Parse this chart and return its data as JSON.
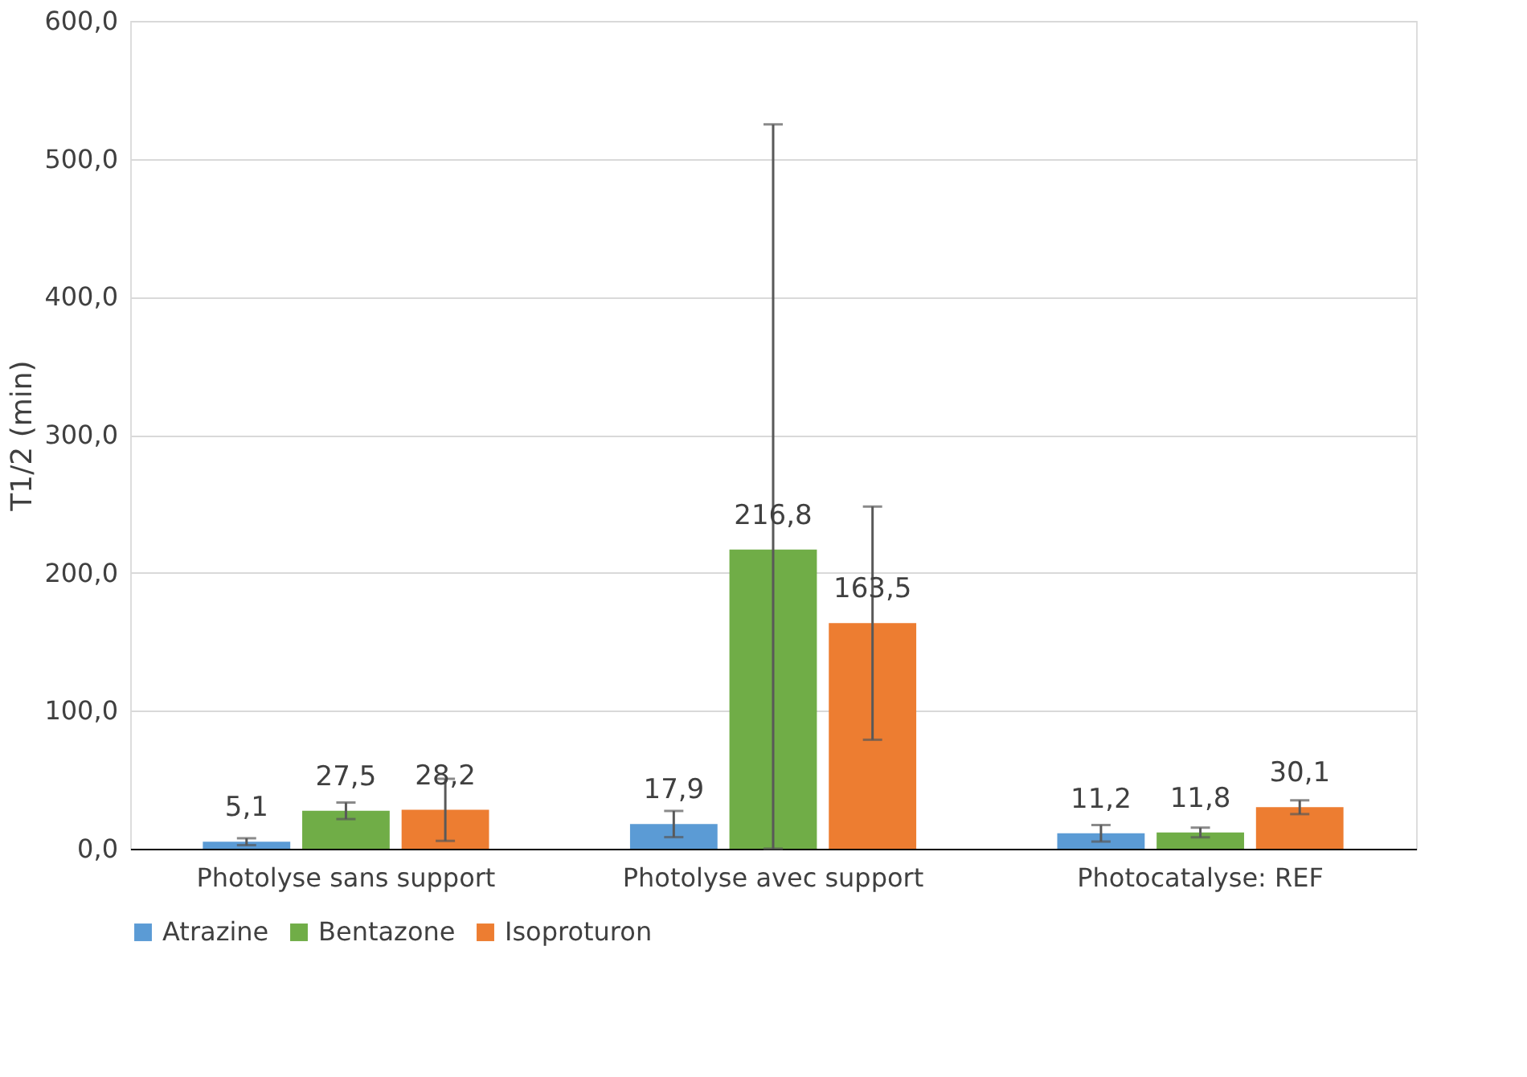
{
  "chart_data": {
    "type": "bar",
    "ylabel": "T1/2 (min)",
    "categories": [
      "Photolyse sans support",
      "Photolyse avec support",
      "Photocatalyse: REF"
    ],
    "series": [
      {
        "name": "Atrazine",
        "color": "#5b9bd5",
        "values": [
          5.1,
          17.9,
          11.2
        ],
        "errors": [
          2.5,
          9.5,
          6
        ],
        "value_labels": [
          "5,1",
          "17,9",
          "11,2"
        ]
      },
      {
        "name": "Bentazone",
        "color": "#70ad47",
        "values": [
          27.5,
          216.8,
          11.8
        ],
        "errors": [
          6,
          [
            0,
            525
          ],
          3.5
        ],
        "value_labels": [
          "27,5",
          "216,8",
          "11,8"
        ]
      },
      {
        "name": "Isoproturon",
        "color": "#ed7d31",
        "values": [
          28.2,
          163.5,
          30.1
        ],
        "errors": [
          22.5,
          84.5,
          5
        ],
        "value_labels": [
          "28,2",
          "163,5",
          "30,1"
        ]
      }
    ],
    "ylim": [
      0,
      600
    ],
    "yticks": [
      {
        "value": 0,
        "label": "0,0"
      },
      {
        "value": 100,
        "label": "100,0"
      },
      {
        "value": 200,
        "label": "200,0"
      },
      {
        "value": 300,
        "label": "300,0"
      },
      {
        "value": 400,
        "label": "400,0"
      },
      {
        "value": 500,
        "label": "500,0"
      },
      {
        "value": 600,
        "label": "600,0"
      }
    ],
    "grid": "y",
    "legend": "bottom"
  }
}
